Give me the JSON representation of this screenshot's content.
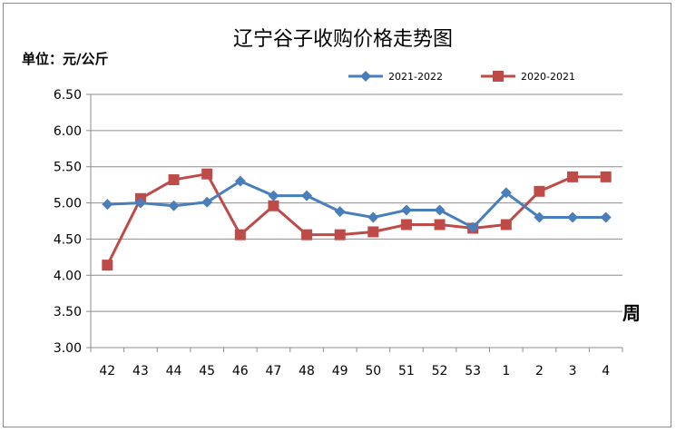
{
  "chart_data": {
    "type": "line",
    "title": "辽宁谷子收购价格走势图",
    "ylabel": "单位：元/公斤",
    "xlabel": "周",
    "categories": [
      "42",
      "43",
      "44",
      "45",
      "46",
      "47",
      "48",
      "49",
      "50",
      "51",
      "52",
      "53",
      "1",
      "2",
      "3",
      "4"
    ],
    "ylim": [
      3.0,
      6.5
    ],
    "yticks": [
      "3.00",
      "3.50",
      "4.00",
      "4.50",
      "5.00",
      "5.50",
      "6.00",
      "6.50"
    ],
    "ytick_values": [
      3.0,
      3.5,
      4.0,
      4.5,
      5.0,
      5.5,
      6.0,
      6.5
    ],
    "grid": true,
    "legend_position": "top-right",
    "series": [
      {
        "name": "2021-2022",
        "color": "#4a7ebb",
        "marker": "diamond",
        "values": [
          4.98,
          5.0,
          4.96,
          5.01,
          5.3,
          5.1,
          5.1,
          4.88,
          4.8,
          4.9,
          4.9,
          4.66,
          5.14,
          4.8,
          4.8,
          4.8
        ]
      },
      {
        "name": "2020-2021",
        "color": "#be4b48",
        "marker": "square",
        "values": [
          4.14,
          5.06,
          5.32,
          5.4,
          4.56,
          4.96,
          4.56,
          4.56,
          4.6,
          4.7,
          4.7,
          4.65,
          4.7,
          5.16,
          5.36,
          5.36
        ]
      }
    ]
  }
}
